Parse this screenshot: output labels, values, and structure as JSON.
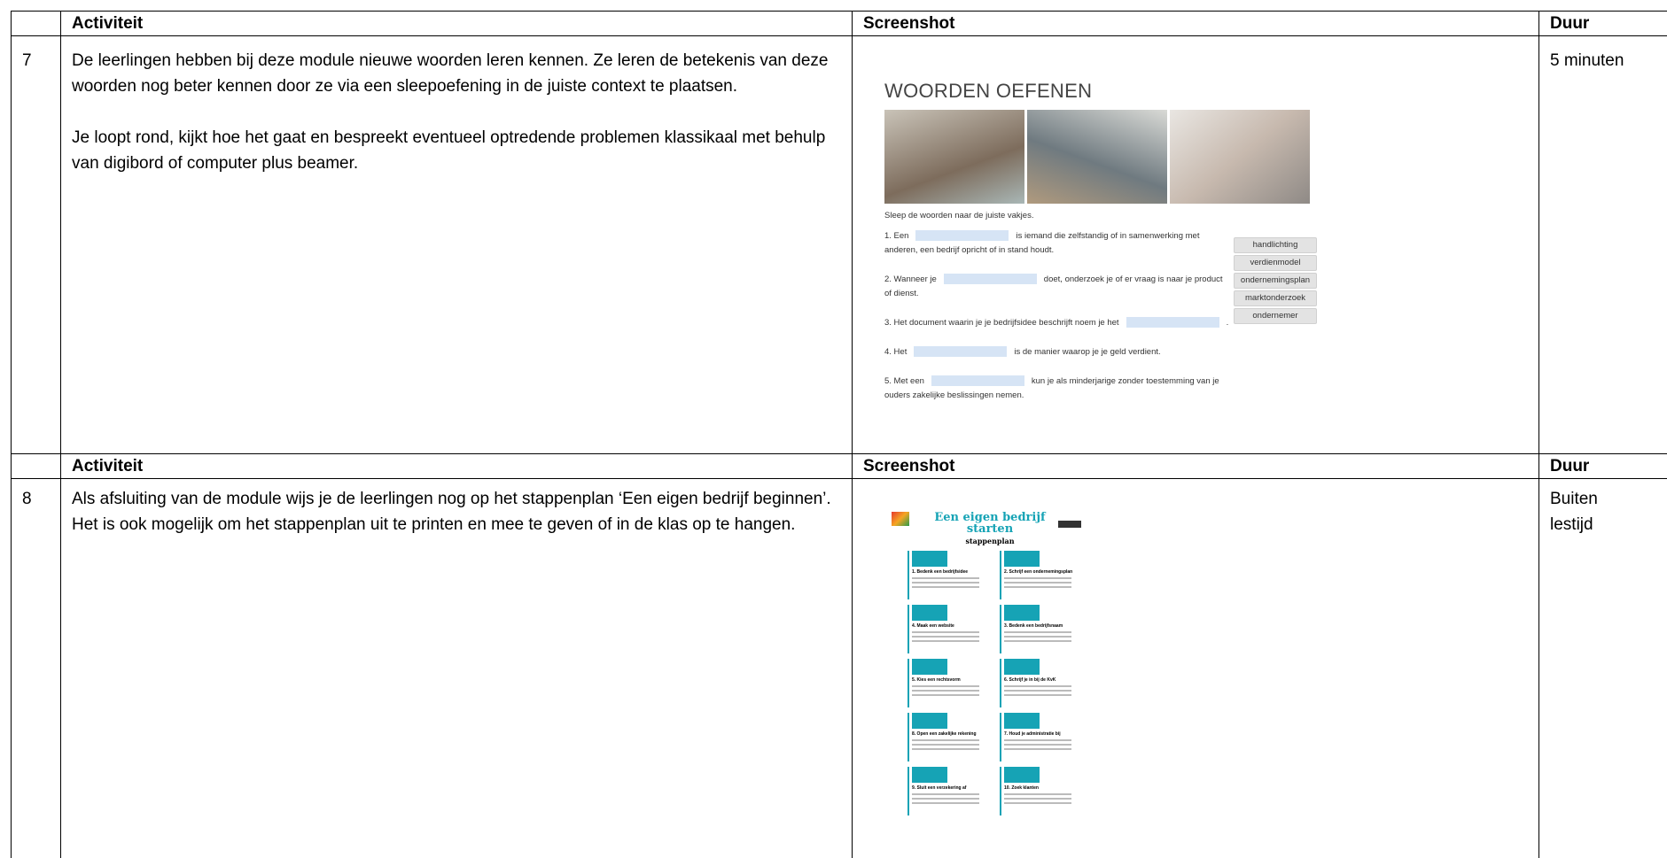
{
  "table": {
    "sections": [
      {
        "header": [
          "Activiteit",
          "Screenshot",
          "Duur"
        ],
        "row": {
          "number": "7",
          "activity": [
            "De leerlingen hebben bij deze module nieuwe woorden leren kennen. Ze leren de betekenis van deze woorden nog beter kennen door ze via een sleepoefening in de juiste context te plaatsen.",
            "Je loopt rond, kijkt hoe het gaat en bespreekt eventueel optredende problemen klassikaal met behulp van digibord of computer plus beamer."
          ],
          "screenshot": {
            "title": "WOORDEN OEFENEN",
            "instruction": "Sleep de woorden naar de juiste vakjes.",
            "sentences": [
              {
                "before": "1. Een",
                "after": "is iemand die zelfstandig of in samenwerking met anderen, een bedrijf opricht of in stand houdt."
              },
              {
                "before": "2. Wanneer je",
                "after": "doet, onderzoek je of er vraag is naar je product of dienst."
              },
              {
                "before": "3. Het document waarin je je bedrijfsidee beschrijft noem je het",
                "after": "."
              },
              {
                "before": "4. Het",
                "after": "is de manier waarop je je geld verdient."
              },
              {
                "before": "5. Met een",
                "after": "kun je als minderjarige zonder toestemming van je ouders zakelijke beslissingen nemen."
              }
            ],
            "words": [
              "handlichting",
              "verdienmodel",
              "ondernemingsplan",
              "marktonderzoek",
              "ondernemer"
            ]
          },
          "duration": "5 minuten"
        }
      },
      {
        "header": [
          "Activiteit",
          "Screenshot",
          "Duur"
        ],
        "row": {
          "number": "8",
          "activity": [
            "Als afsluiting van de module wijs je de leerlingen nog op het stappenplan ‘Een eigen bedrijf beginnen’. Het is ook mogelijk om het stappenplan uit te printen en mee te geven of in de klas op te hangen."
          ],
          "screenshot": {
            "title": "Een eigen bedrijf starten",
            "subtitle": "stappenplan",
            "steps": [
              "1. Bedenk een bedrijfsidee",
              "2. Schrijf een ondernemingsplan",
              "4. Maak een website",
              "3. Bedenk een bedrijfsnaam",
              "5. Kies een rechtsvorm",
              "6. Schrijf je in bij de KvK",
              "8. Open een zakelijke rekening",
              "7. Houd je administratie bij",
              "9. Sluit een verzekering af",
              "10. Zoek klanten"
            ]
          },
          "duration": "Buiten lestijd"
        }
      }
    ]
  }
}
